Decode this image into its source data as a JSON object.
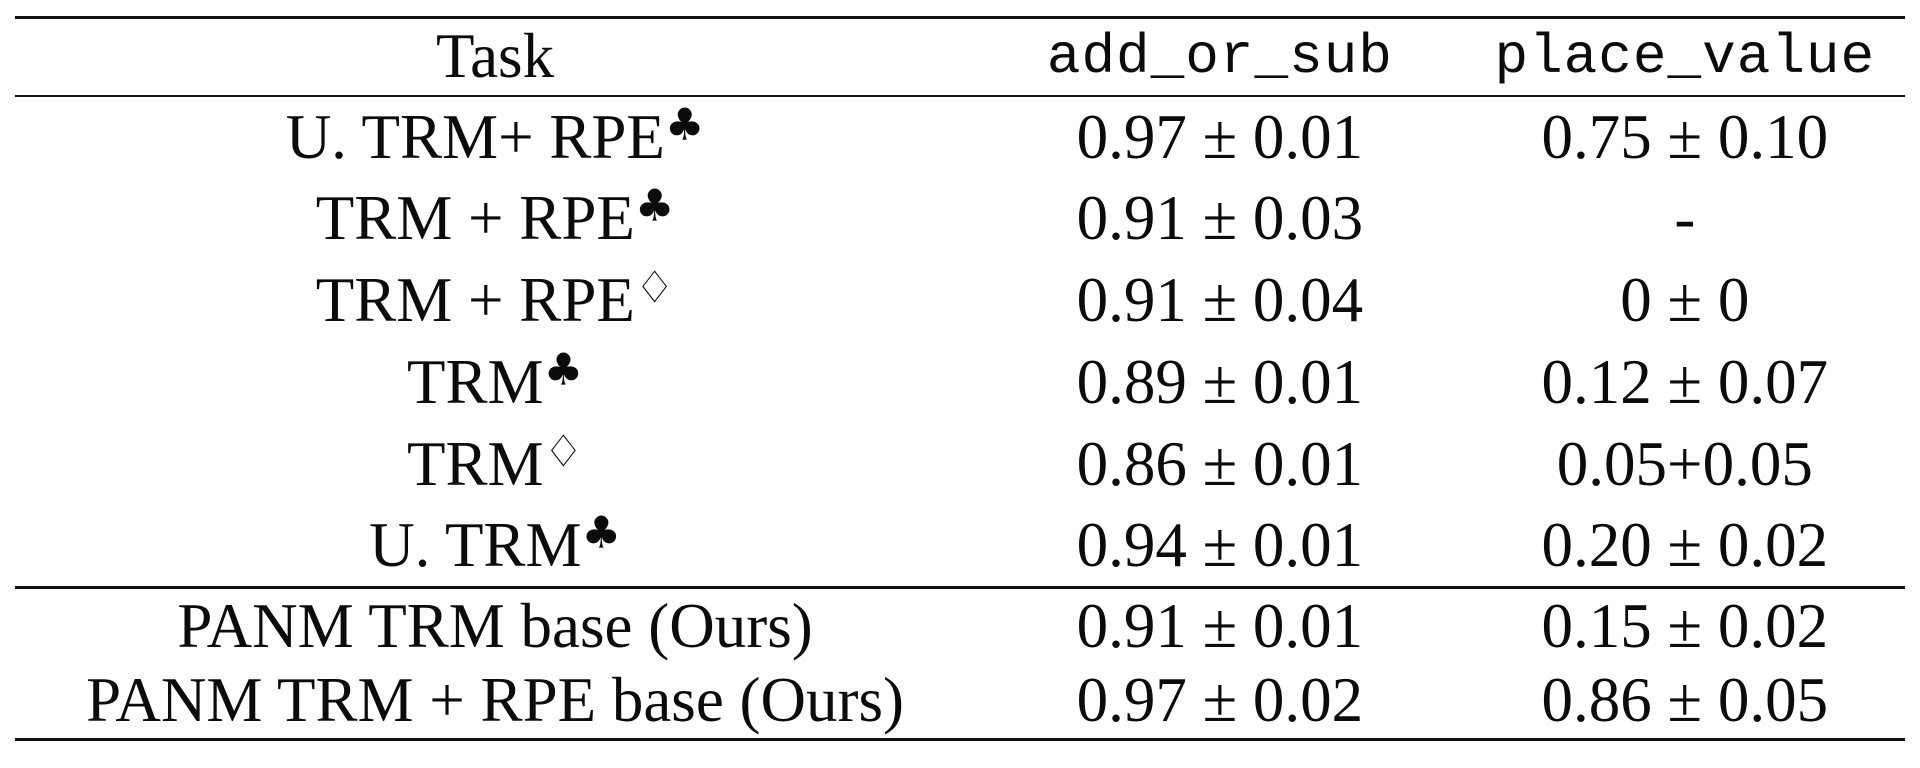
{
  "meta": {
    "background_color": "#ffffff",
    "text_color": "#0b0b0b",
    "rule_color": "#101010"
  },
  "table": {
    "headers": [
      "Task",
      "add_or_sub",
      "place_value"
    ],
    "suit_legend": {
      "club": "♣",
      "diamond": "♢"
    },
    "rows": [
      {
        "task": "U. TRM+ RPE",
        "suit": "♣",
        "add_or_sub": "0.97 ± 0.01",
        "place_value": "0.75 ± 0.10"
      },
      {
        "task": "TRM + RPE",
        "suit": "♣",
        "add_or_sub": "0.91 ± 0.03",
        "place_value": "-"
      },
      {
        "task": "TRM + RPE",
        "suit": "♢",
        "add_or_sub": "0.91 ± 0.04",
        "place_value": "0 ± 0"
      },
      {
        "task": "TRM",
        "suit": "♣",
        "add_or_sub": "0.89 ± 0.01",
        "place_value": "0.12 ± 0.07"
      },
      {
        "task": "TRM",
        "suit": "♢",
        "add_or_sub": "0.86 ± 0.01",
        "place_value": "0.05+0.05"
      },
      {
        "task": "U. TRM",
        "suit": "♣",
        "add_or_sub": "0.94 ± 0.01",
        "place_value": "0.20 ± 0.02"
      },
      {
        "task": "PANM TRM base (Ours)",
        "suit": "",
        "add_or_sub": "0.91 ± 0.01",
        "place_value": "0.15 ± 0.02"
      },
      {
        "task": "PANM TRM + RPE base (Ours)",
        "suit": "",
        "add_or_sub": "0.97 ± 0.02",
        "place_value": "0.86 ± 0.05"
      }
    ],
    "bold_cells_note": "row0 add_or_sub, row7 add_or_sub, row7 place_value are bold (best results)"
  }
}
